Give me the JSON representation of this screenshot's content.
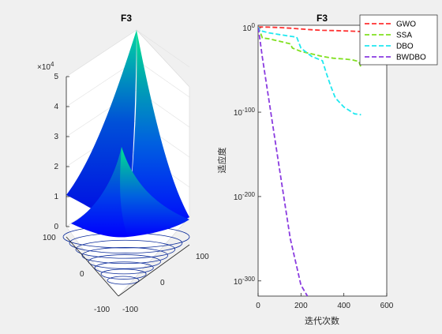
{
  "chart_data": [
    {
      "type": "surface",
      "title": "F3",
      "z_exponent_label": "×10",
      "z_exponent": "4",
      "z_ticks": [
        "0",
        "1",
        "2",
        "3",
        "4",
        "5"
      ],
      "x_ticks": [
        "-100",
        "0",
        "100"
      ],
      "y_ticks": [
        "-100",
        "0",
        "100"
      ],
      "zlim": [
        0,
        50000
      ],
      "xlim": [
        -100,
        100
      ],
      "ylim": [
        -100,
        100
      ],
      "colormap": [
        "#0000ff",
        "#0060e0",
        "#00a6b0",
        "#00e690"
      ],
      "contour_levels": 8
    },
    {
      "type": "line",
      "title": "F3",
      "yscale": "log",
      "xlabel": "迭代次数",
      "ylabel": "适应度",
      "xlim": [
        0,
        600
      ],
      "ylim_log10": [
        -318,
        3
      ],
      "x_ticks": [
        0,
        200,
        400,
        600
      ],
      "y_tick_exponents": [
        "0",
        "-100",
        "-200",
        "-300"
      ],
      "y_tick_base": "10",
      "legend_position": "top-right",
      "series": [
        {
          "name": "GWO",
          "color": "#ff3030",
          "x": [
            1,
            50,
            100,
            150,
            200,
            250,
            300,
            350,
            400,
            450,
            500
          ],
          "log10_y": [
            1,
            0.8,
            0.3,
            -0.5,
            -1.4,
            -2.3,
            -3.0,
            -3.3,
            -3.6,
            -4.1,
            -4.6
          ]
        },
        {
          "name": "SSA",
          "color": "#80e020",
          "x": [
            1,
            20,
            50,
            100,
            150,
            160,
            200,
            250,
            300,
            350,
            400,
            440,
            470,
            480
          ],
          "log10_y": [
            1,
            -12,
            -13,
            -16,
            -19,
            -24,
            -28,
            -31,
            -34,
            -36,
            -37,
            -38,
            -40,
            -47
          ]
        },
        {
          "name": "DBO",
          "color": "#20e8f0",
          "x": [
            1,
            5,
            10,
            20,
            50,
            100,
            150,
            180,
            200,
            250,
            300,
            320,
            340,
            360,
            400,
            450,
            480
          ],
          "log10_y": [
            1,
            -2,
            -5,
            -4,
            -6,
            -8,
            -10,
            -11,
            -24,
            -34,
            -39,
            -55,
            -70,
            -83,
            -94,
            -102,
            -103
          ]
        },
        {
          "name": "BWDBO",
          "color": "#8a3be0",
          "x": [
            1,
            20,
            50,
            100,
            150,
            200,
            230
          ],
          "log10_y": [
            0,
            -35,
            -85,
            -168,
            -250,
            -305,
            -318
          ]
        }
      ]
    }
  ]
}
